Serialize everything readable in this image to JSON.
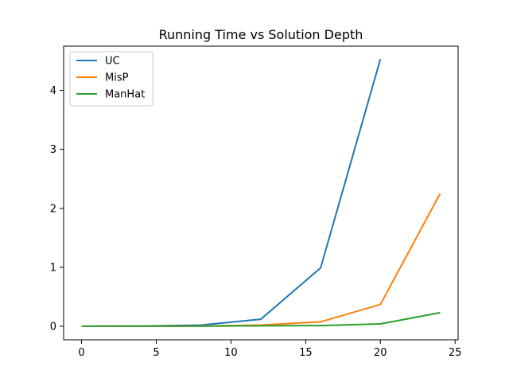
{
  "chart_data": {
    "type": "line",
    "title": "Running Time vs Solution Depth",
    "xlabel": "",
    "ylabel": "",
    "xlim": [
      -1.2,
      25.2
    ],
    "ylim": [
      -0.23,
      4.75
    ],
    "xticks": [
      0,
      5,
      10,
      15,
      20,
      25
    ],
    "yticks": [
      0,
      1,
      2,
      3,
      4
    ],
    "grid": false,
    "legend": "top-left",
    "series": [
      {
        "name": "UC",
        "color": "#1f77b4",
        "x": [
          0,
          4,
          8,
          12,
          16,
          20
        ],
        "y": [
          0.0,
          0.002,
          0.02,
          0.12,
          0.99,
          4.53
        ]
      },
      {
        "name": "MisP",
        "color": "#ff7f0e",
        "x": [
          0,
          4,
          8,
          12,
          16,
          20,
          24
        ],
        "y": [
          0.0,
          0.001,
          0.004,
          0.02,
          0.075,
          0.37,
          2.25
        ]
      },
      {
        "name": "ManHat",
        "color": "#2ca02c",
        "x": [
          0,
          4,
          8,
          12,
          16,
          20,
          24
        ],
        "y": [
          0.0,
          0.001,
          0.003,
          0.008,
          0.012,
          0.04,
          0.23
        ]
      }
    ]
  }
}
